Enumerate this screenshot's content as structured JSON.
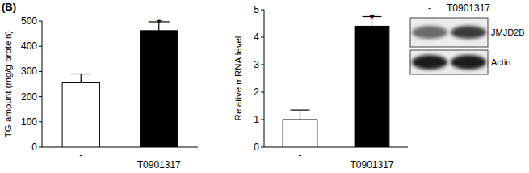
{
  "panel_label": "(B)",
  "chart_data": [
    {
      "type": "bar",
      "ylabel": "TG amount (mg/g protein)",
      "categories": [
        "-",
        "T0901317"
      ],
      "values": [
        255,
        462
      ],
      "errors": [
        35,
        35
      ],
      "colors": [
        "#ffffff",
        "#000000"
      ],
      "ylim": [
        0,
        500
      ],
      "yticks": [
        0,
        100,
        200,
        300,
        400,
        500
      ],
      "annotations": [
        {
          "category": "T0901317",
          "text": "*"
        }
      ]
    },
    {
      "type": "bar",
      "ylabel": "Relative  mRNA level",
      "categories": [
        "-",
        "T0901317"
      ],
      "values": [
        1.0,
        4.4
      ],
      "errors": [
        0.35,
        0.35
      ],
      "colors": [
        "#ffffff",
        "#000000"
      ],
      "ylim": [
        0,
        5
      ],
      "yticks": [
        0,
        1,
        2,
        3,
        4,
        5
      ],
      "annotations": [
        {
          "category": "T0901317",
          "text": "*"
        }
      ]
    }
  ],
  "blot": {
    "lanes": [
      "-",
      "T0901317"
    ],
    "bands": [
      "JMJD2B",
      "Actin"
    ]
  }
}
